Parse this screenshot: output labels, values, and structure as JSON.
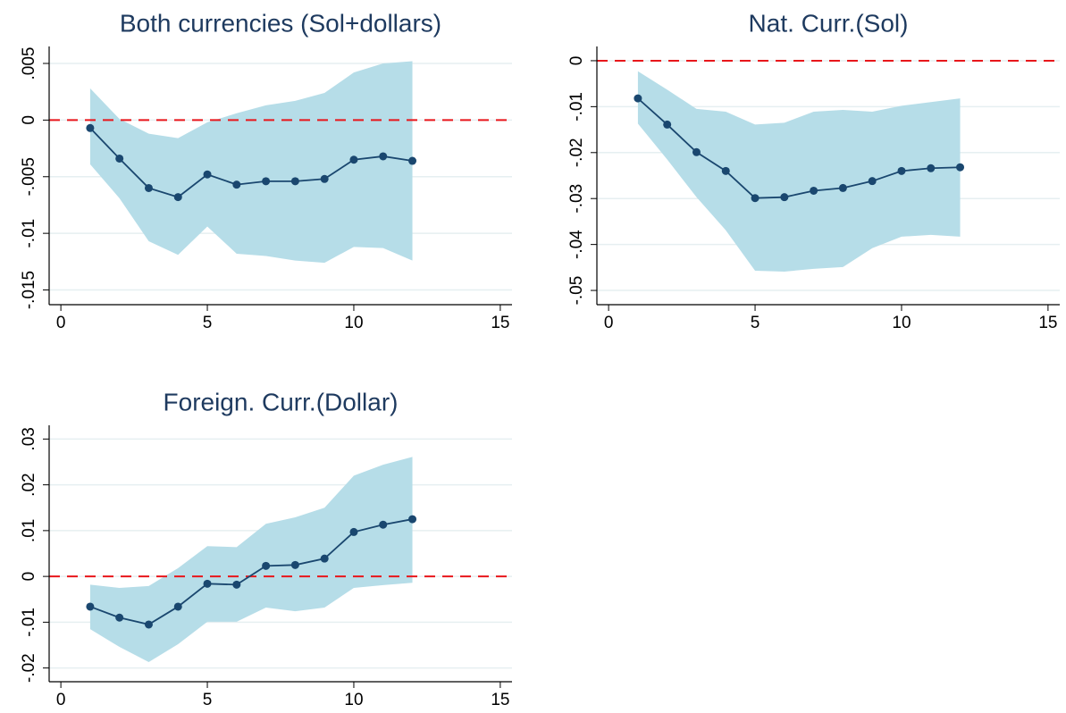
{
  "chart_data": [
    {
      "type": "line",
      "title": "Both currencies (Sol+dollars)",
      "x": [
        1,
        2,
        3,
        4,
        5,
        6,
        7,
        8,
        9,
        10,
        11,
        12
      ],
      "values": [
        -0.0007,
        -0.0034,
        -0.006,
        -0.0068,
        -0.0048,
        -0.0057,
        -0.0054,
        -0.0054,
        -0.0052,
        -0.0035,
        -0.0032,
        -0.0036
      ],
      "band": {
        "lower": [
          -0.0039,
          -0.0069,
          -0.0107,
          -0.0119,
          -0.0094,
          -0.0118,
          -0.012,
          -0.0124,
          -0.0126,
          -0.0112,
          -0.0113,
          -0.0124
        ],
        "upper": [
          0.0028,
          0.0001,
          -0.0012,
          -0.0016,
          -0.0002,
          0.0006,
          0.0013,
          0.0017,
          0.0024,
          0.0042,
          0.005,
          0.0052
        ]
      },
      "color": "#1a476f",
      "band_color": "#b6dde8",
      "hline": 0,
      "hline_color": "#e8161b",
      "xlim": [
        -0.4,
        15.4
      ],
      "xticks": [
        0,
        5,
        10,
        15
      ],
      "ylim": [
        -0.0163,
        0.0065
      ],
      "yticks": [
        {
          "value": -0.015,
          "label": "-.015"
        },
        {
          "value": -0.01,
          "label": "-.01"
        },
        {
          "value": -0.005,
          "label": "-.005"
        },
        0,
        {
          "value": 0.005,
          "label": ".005"
        }
      ],
      "grid": true
    },
    {
      "type": "line",
      "title": "Nat. Curr.(Sol)",
      "x": [
        1,
        2,
        3,
        4,
        5,
        6,
        7,
        8,
        9,
        10,
        11,
        12
      ],
      "values": [
        -0.0082,
        -0.0139,
        -0.0199,
        -0.024,
        -0.0299,
        -0.0297,
        -0.0283,
        -0.0277,
        -0.0262,
        -0.024,
        -0.0234,
        -0.0232
      ],
      "band": {
        "lower": [
          -0.0137,
          -0.0215,
          -0.0297,
          -0.0369,
          -0.0457,
          -0.0459,
          -0.0453,
          -0.0449,
          -0.0408,
          -0.0383,
          -0.0379,
          -0.0383
        ],
        "upper": [
          -0.0023,
          -0.0063,
          -0.0105,
          -0.0111,
          -0.0139,
          -0.0135,
          -0.0111,
          -0.0107,
          -0.0111,
          -0.0098,
          -0.009,
          -0.0082
        ]
      },
      "color": "#1a476f",
      "band_color": "#b6dde8",
      "hline": 0,
      "hline_color": "#e8161b",
      "xlim": [
        -0.4,
        15.4
      ],
      "xticks": [
        0,
        5,
        10,
        15
      ],
      "ylim": [
        -0.0531,
        0.0031
      ],
      "yticks": [
        {
          "value": -0.05,
          "label": "-.05"
        },
        {
          "value": -0.04,
          "label": "-.04"
        },
        {
          "value": -0.03,
          "label": "-.03"
        },
        {
          "value": -0.02,
          "label": "-.02"
        },
        {
          "value": -0.01,
          "label": "-.01"
        },
        0
      ],
      "grid": true
    },
    {
      "type": "line",
      "title": "Foreign. Curr.(Dollar)",
      "x": [
        1,
        2,
        3,
        4,
        5,
        6,
        7,
        8,
        9,
        10,
        11,
        12
      ],
      "values": [
        -0.0066,
        -0.009,
        -0.0105,
        -0.0066,
        -0.0016,
        -0.0018,
        0.0023,
        0.0025,
        0.0039,
        0.0097,
        0.0113,
        0.0125
      ],
      "band": {
        "lower": [
          -0.0115,
          -0.0154,
          -0.0187,
          -0.0148,
          -0.0099,
          -0.0099,
          -0.0068,
          -0.0076,
          -0.0068,
          -0.0025,
          -0.0019,
          -0.0014
        ],
        "upper": [
          -0.0018,
          -0.0025,
          -0.0021,
          0.0018,
          0.0066,
          0.0064,
          0.0115,
          0.0129,
          0.015,
          0.022,
          0.0244,
          0.0261
        ]
      },
      "color": "#1a476f",
      "band_color": "#b6dde8",
      "hline": 0,
      "hline_color": "#e8161b",
      "xlim": [
        -0.4,
        15.4
      ],
      "xticks": [
        0,
        5,
        10,
        15
      ],
      "ylim": [
        -0.023,
        0.033
      ],
      "yticks": [
        {
          "value": -0.02,
          "label": "-.02"
        },
        {
          "value": -0.01,
          "label": "-.01"
        },
        0,
        {
          "value": 0.01,
          "label": ".01"
        },
        {
          "value": 0.02,
          "label": ".02"
        },
        {
          "value": 0.03,
          "label": ".03"
        }
      ],
      "grid": true
    }
  ]
}
